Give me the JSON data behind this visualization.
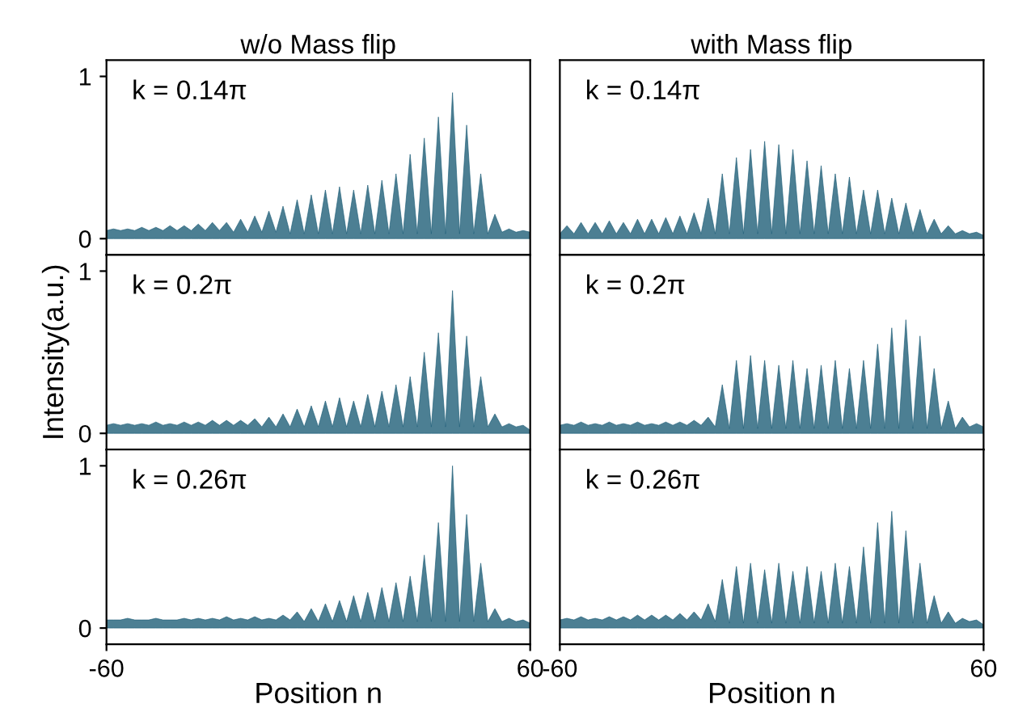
{
  "chart_data": [
    {
      "type": "area",
      "title": "w/o Mass flip",
      "annotations": [
        "k = 0.14π"
      ],
      "tick_labels": "y",
      "xlim": [
        -60,
        60
      ],
      "ylim": [
        -0.1,
        1.1
      ],
      "xticks": [
        -60,
        60
      ],
      "yticks": [
        0,
        1
      ],
      "grid": false,
      "x": [
        -60,
        -58,
        -56,
        -54,
        -52,
        -50,
        -48,
        -46,
        -44,
        -42,
        -40,
        -38,
        -36,
        -34,
        -32,
        -30,
        -28,
        -26,
        -24,
        -22,
        -20,
        -18,
        -16,
        -14,
        -12,
        -10,
        -8,
        -6,
        -4,
        -2,
        0,
        2,
        4,
        6,
        8,
        10,
        12,
        14,
        16,
        18,
        20,
        22,
        24,
        26,
        28,
        30,
        32,
        34,
        36,
        38,
        40,
        42,
        44,
        46,
        48,
        50,
        52,
        54,
        56,
        58,
        60
      ],
      "series": [
        {
          "color": "#1f5f78",
          "values": [
            0.05,
            0.06,
            0.05,
            0.06,
            0.05,
            0.07,
            0.05,
            0.07,
            0.05,
            0.08,
            0.05,
            0.08,
            0.05,
            0.09,
            0.05,
            0.1,
            0.05,
            0.1,
            0.04,
            0.12,
            0.04,
            0.14,
            0.04,
            0.17,
            0.04,
            0.2,
            0.03,
            0.24,
            0.03,
            0.27,
            0.03,
            0.3,
            0.03,
            0.32,
            0.03,
            0.3,
            0.03,
            0.33,
            0.03,
            0.36,
            0.03,
            0.4,
            0.03,
            0.52,
            0.03,
            0.62,
            0.03,
            0.75,
            0.03,
            0.9,
            0.03,
            0.7,
            0.03,
            0.4,
            0.03,
            0.15,
            0.04,
            0.06,
            0.04,
            0.05,
            0.04
          ]
        }
      ]
    },
    {
      "type": "area",
      "title": "with Mass flip",
      "annotations": [
        "k = 0.14π"
      ],
      "tick_labels": false,
      "xlim": [
        -60,
        60
      ],
      "ylim": [
        -0.1,
        1.1
      ],
      "xticks": [
        -60,
        60
      ],
      "yticks": [
        0,
        1
      ],
      "grid": false,
      "x": [
        -60,
        -58,
        -56,
        -54,
        -52,
        -50,
        -48,
        -46,
        -44,
        -42,
        -40,
        -38,
        -36,
        -34,
        -32,
        -30,
        -28,
        -26,
        -24,
        -22,
        -20,
        -18,
        -16,
        -14,
        -12,
        -10,
        -8,
        -6,
        -4,
        -2,
        0,
        2,
        4,
        6,
        8,
        10,
        12,
        14,
        16,
        18,
        20,
        22,
        24,
        26,
        28,
        30,
        32,
        34,
        36,
        38,
        40,
        42,
        44,
        46,
        48,
        50,
        52,
        54,
        56,
        58,
        60
      ],
      "series": [
        {
          "color": "#1f5f78",
          "values": [
            0.03,
            0.08,
            0.03,
            0.1,
            0.03,
            0.1,
            0.03,
            0.11,
            0.03,
            0.1,
            0.03,
            0.12,
            0.03,
            0.12,
            0.03,
            0.13,
            0.03,
            0.14,
            0.03,
            0.16,
            0.03,
            0.25,
            0.03,
            0.4,
            0.03,
            0.5,
            0.03,
            0.55,
            0.03,
            0.6,
            0.03,
            0.58,
            0.03,
            0.55,
            0.03,
            0.48,
            0.03,
            0.45,
            0.03,
            0.4,
            0.03,
            0.38,
            0.03,
            0.3,
            0.03,
            0.3,
            0.03,
            0.25,
            0.03,
            0.22,
            0.03,
            0.18,
            0.03,
            0.12,
            0.03,
            0.08,
            0.03,
            0.05,
            0.03,
            0.04,
            0.02
          ]
        }
      ]
    },
    {
      "type": "area",
      "ylabel": "Intensity(a.u.)",
      "annotations": [
        "k = 0.2π"
      ],
      "tick_labels": "y",
      "xlim": [
        -60,
        60
      ],
      "ylim": [
        -0.1,
        1.1
      ],
      "xticks": [
        -60,
        60
      ],
      "yticks": [
        0,
        1
      ],
      "grid": false,
      "x": [
        -60,
        -58,
        -56,
        -54,
        -52,
        -50,
        -48,
        -46,
        -44,
        -42,
        -40,
        -38,
        -36,
        -34,
        -32,
        -30,
        -28,
        -26,
        -24,
        -22,
        -20,
        -18,
        -16,
        -14,
        -12,
        -10,
        -8,
        -6,
        -4,
        -2,
        0,
        2,
        4,
        6,
        8,
        10,
        12,
        14,
        16,
        18,
        20,
        22,
        24,
        26,
        28,
        30,
        32,
        34,
        36,
        38,
        40,
        42,
        44,
        46,
        48,
        50,
        52,
        54,
        56,
        58,
        60
      ],
      "series": [
        {
          "color": "#1f5f78",
          "values": [
            0.05,
            0.06,
            0.05,
            0.06,
            0.05,
            0.06,
            0.05,
            0.07,
            0.05,
            0.06,
            0.05,
            0.07,
            0.05,
            0.07,
            0.05,
            0.08,
            0.05,
            0.08,
            0.05,
            0.08,
            0.05,
            0.09,
            0.04,
            0.1,
            0.04,
            0.12,
            0.04,
            0.15,
            0.04,
            0.17,
            0.04,
            0.2,
            0.04,
            0.22,
            0.04,
            0.2,
            0.04,
            0.24,
            0.04,
            0.26,
            0.04,
            0.3,
            0.04,
            0.35,
            0.04,
            0.5,
            0.04,
            0.62,
            0.04,
            0.88,
            0.04,
            0.6,
            0.04,
            0.35,
            0.04,
            0.12,
            0.04,
            0.06,
            0.04,
            0.05,
            0.02
          ]
        }
      ]
    },
    {
      "type": "area",
      "annotations": [
        "k = 0.2π"
      ],
      "tick_labels": false,
      "xlim": [
        -60,
        60
      ],
      "ylim": [
        -0.1,
        1.1
      ],
      "xticks": [
        -60,
        60
      ],
      "yticks": [
        0,
        1
      ],
      "grid": false,
      "x": [
        -60,
        -58,
        -56,
        -54,
        -52,
        -50,
        -48,
        -46,
        -44,
        -42,
        -40,
        -38,
        -36,
        -34,
        -32,
        -30,
        -28,
        -26,
        -24,
        -22,
        -20,
        -18,
        -16,
        -14,
        -12,
        -10,
        -8,
        -6,
        -4,
        -2,
        0,
        2,
        4,
        6,
        8,
        10,
        12,
        14,
        16,
        18,
        20,
        22,
        24,
        26,
        28,
        30,
        32,
        34,
        36,
        38,
        40,
        42,
        44,
        46,
        48,
        50,
        52,
        54,
        56,
        58,
        60
      ],
      "series": [
        {
          "color": "#1f5f78",
          "values": [
            0.05,
            0.06,
            0.05,
            0.07,
            0.05,
            0.06,
            0.05,
            0.07,
            0.05,
            0.06,
            0.05,
            0.07,
            0.05,
            0.06,
            0.05,
            0.07,
            0.05,
            0.07,
            0.05,
            0.08,
            0.05,
            0.1,
            0.04,
            0.3,
            0.03,
            0.45,
            0.03,
            0.48,
            0.03,
            0.45,
            0.03,
            0.42,
            0.03,
            0.45,
            0.03,
            0.4,
            0.03,
            0.42,
            0.03,
            0.45,
            0.03,
            0.4,
            0.03,
            0.45,
            0.03,
            0.55,
            0.03,
            0.65,
            0.03,
            0.7,
            0.03,
            0.6,
            0.03,
            0.4,
            0.03,
            0.2,
            0.03,
            0.1,
            0.04,
            0.06,
            0.04
          ]
        }
      ]
    },
    {
      "type": "area",
      "xlabel": "Position n",
      "annotations": [
        "k = 0.26π"
      ],
      "xlim": [
        -60,
        60
      ],
      "ylim": [
        -0.1,
        1.1
      ],
      "xticks": [
        -60,
        60
      ],
      "yticks": [
        0,
        1
      ],
      "grid": false,
      "x": [
        -60,
        -58,
        -56,
        -54,
        -52,
        -50,
        -48,
        -46,
        -44,
        -42,
        -40,
        -38,
        -36,
        -34,
        -32,
        -30,
        -28,
        -26,
        -24,
        -22,
        -20,
        -18,
        -16,
        -14,
        -12,
        -10,
        -8,
        -6,
        -4,
        -2,
        0,
        2,
        4,
        6,
        8,
        10,
        12,
        14,
        16,
        18,
        20,
        22,
        24,
        26,
        28,
        30,
        32,
        34,
        36,
        38,
        40,
        42,
        44,
        46,
        48,
        50,
        52,
        54,
        56,
        58,
        60
      ],
      "series": [
        {
          "color": "#1f5f78",
          "values": [
            0.05,
            0.05,
            0.05,
            0.06,
            0.05,
            0.05,
            0.05,
            0.06,
            0.05,
            0.05,
            0.05,
            0.06,
            0.05,
            0.06,
            0.05,
            0.06,
            0.05,
            0.07,
            0.05,
            0.06,
            0.05,
            0.07,
            0.05,
            0.06,
            0.05,
            0.08,
            0.05,
            0.1,
            0.04,
            0.12,
            0.04,
            0.15,
            0.04,
            0.17,
            0.04,
            0.2,
            0.04,
            0.22,
            0.04,
            0.25,
            0.04,
            0.28,
            0.04,
            0.32,
            0.04,
            0.45,
            0.04,
            0.65,
            0.04,
            1.0,
            0.04,
            0.7,
            0.04,
            0.4,
            0.04,
            0.12,
            0.04,
            0.06,
            0.04,
            0.05,
            0.03
          ]
        }
      ]
    },
    {
      "type": "area",
      "xlabel": "Position n",
      "annotations": [
        "k = 0.26π"
      ],
      "tick_labels": "x",
      "xlim": [
        -60,
        60
      ],
      "ylim": [
        -0.1,
        1.1
      ],
      "xticks": [
        -60,
        60
      ],
      "yticks": [
        0,
        1
      ],
      "grid": false,
      "x": [
        -60,
        -58,
        -56,
        -54,
        -52,
        -50,
        -48,
        -46,
        -44,
        -42,
        -40,
        -38,
        -36,
        -34,
        -32,
        -30,
        -28,
        -26,
        -24,
        -22,
        -20,
        -18,
        -16,
        -14,
        -12,
        -10,
        -8,
        -6,
        -4,
        -2,
        0,
        2,
        4,
        6,
        8,
        10,
        12,
        14,
        16,
        18,
        20,
        22,
        24,
        26,
        28,
        30,
        32,
        34,
        36,
        38,
        40,
        42,
        44,
        46,
        48,
        50,
        52,
        54,
        56,
        58,
        60
      ],
      "series": [
        {
          "color": "#1f5f78",
          "values": [
            0.05,
            0.06,
            0.05,
            0.07,
            0.05,
            0.06,
            0.05,
            0.07,
            0.05,
            0.07,
            0.05,
            0.08,
            0.05,
            0.08,
            0.05,
            0.08,
            0.05,
            0.09,
            0.05,
            0.1,
            0.05,
            0.15,
            0.04,
            0.3,
            0.03,
            0.38,
            0.03,
            0.4,
            0.03,
            0.36,
            0.03,
            0.4,
            0.03,
            0.35,
            0.03,
            0.38,
            0.03,
            0.35,
            0.03,
            0.4,
            0.03,
            0.38,
            0.03,
            0.5,
            0.03,
            0.65,
            0.03,
            0.72,
            0.03,
            0.6,
            0.03,
            0.4,
            0.03,
            0.2,
            0.03,
            0.1,
            0.03,
            0.06,
            0.04,
            0.05,
            0.02
          ]
        }
      ]
    }
  ]
}
